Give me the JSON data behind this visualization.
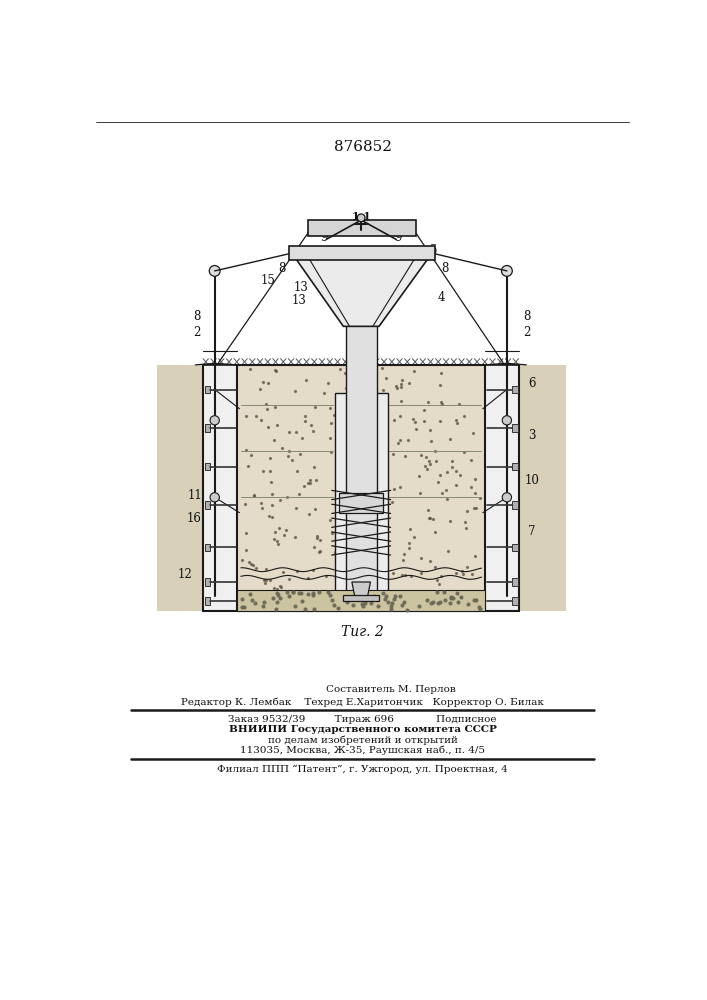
{
  "title": "876852",
  "fig_label": "Τиг. 2",
  "bg_color": "#ffffff",
  "lc": "#1a1a1a",
  "tc": "#111111",
  "footer": [
    "Составитель М. Перлов",
    "Редактор К. Лембак    Техред Е.Харитончик   Корректор О. Билак",
    "Заказ 9532/39         Тираж 696             Подписное",
    "ВНИИПИ Государственного комитета СССР",
    "по делам изобретений и открытий",
    "113035, Москва, Ж-35, Раушская наб., п. 4/5",
    "Филиал ППП “Патент”, г. Ужгород, ул. Проектная, 4"
  ]
}
